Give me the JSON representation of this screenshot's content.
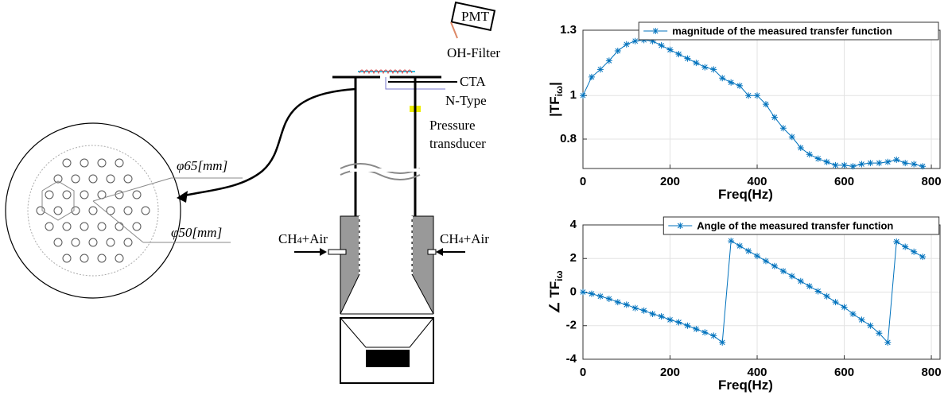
{
  "diagram": {
    "pmt": "PMT",
    "oh_filter": "OH-Filter",
    "cta": "CTA",
    "n_type": "N-Type",
    "pressure": [
      "Pressure",
      "transducer"
    ],
    "phi65": "φ65[mm]",
    "phi50": "φ50[mm]",
    "inlet_left": [
      "CH",
      "4",
      "+Air"
    ],
    "inlet_right": [
      "CH",
      "4",
      "+Air"
    ]
  },
  "chart_data": [
    {
      "type": "line",
      "xlabel": "Freq(Hz)",
      "ylabel": [
        "|TF",
        "iω",
        "|"
      ],
      "x": [
        0,
        20,
        40,
        60,
        80,
        100,
        120,
        140,
        160,
        180,
        200,
        220,
        240,
        260,
        280,
        300,
        320,
        340,
        360,
        380,
        400,
        420,
        440,
        460,
        480,
        500,
        520,
        540,
        560,
        580,
        600,
        620,
        640,
        660,
        680,
        700,
        720,
        740,
        760,
        780
      ],
      "series": [
        {
          "name": "magnitude of the measured transfer function",
          "color": "#0072bd",
          "values": [
            1.0,
            1.085,
            1.12,
            1.16,
            1.205,
            1.235,
            1.25,
            1.255,
            1.25,
            1.23,
            1.21,
            1.19,
            1.17,
            1.15,
            1.13,
            1.12,
            1.08,
            1.06,
            1.045,
            1.0,
            1.0,
            0.96,
            0.9,
            0.85,
            0.81,
            0.76,
            0.73,
            0.71,
            0.695,
            0.68,
            0.68,
            0.675,
            0.685,
            0.69,
            0.69,
            0.695,
            0.705,
            0.69,
            0.685,
            0.675
          ]
        }
      ],
      "xlim": [
        0,
        820
      ],
      "ylim": [
        0.665,
        1.3
      ],
      "xticks": [
        0,
        200,
        400,
        600,
        800
      ],
      "yticks": [
        0.8,
        1,
        1.3
      ],
      "grid": true,
      "legend": "northeast"
    },
    {
      "type": "line",
      "xlabel": "Freq(Hz)",
      "ylabel": [
        "∠ TF",
        "iω",
        ""
      ],
      "x": [
        0,
        20,
        40,
        60,
        80,
        100,
        120,
        140,
        160,
        180,
        200,
        220,
        240,
        260,
        280,
        300,
        320,
        340,
        360,
        380,
        400,
        420,
        440,
        460,
        480,
        500,
        520,
        540,
        560,
        580,
        600,
        620,
        640,
        660,
        680,
        700,
        720,
        740,
        760,
        780
      ],
      "series": [
        {
          "name": "Angle of the measured transfer function",
          "color": "#0072bd",
          "values": [
            0,
            -0.1,
            -0.25,
            -0.4,
            -0.6,
            -0.75,
            -0.95,
            -1.1,
            -1.3,
            -1.45,
            -1.65,
            -1.8,
            -2.0,
            -2.2,
            -2.4,
            -2.6,
            -3.0,
            3.05,
            2.75,
            2.45,
            2.15,
            1.85,
            1.55,
            1.25,
            0.95,
            0.65,
            0.35,
            0.05,
            -0.25,
            -0.6,
            -0.9,
            -1.3,
            -1.65,
            -2.0,
            -2.45,
            -3.0,
            3.0,
            2.7,
            2.4,
            2.1
          ]
        }
      ],
      "xlim": [
        0,
        820
      ],
      "ylim": [
        -4,
        4
      ],
      "xticks": [
        0,
        200,
        400,
        600,
        800
      ],
      "yticks": [
        -4,
        -2,
        0,
        2,
        4
      ],
      "grid": true,
      "legend": "north"
    }
  ]
}
